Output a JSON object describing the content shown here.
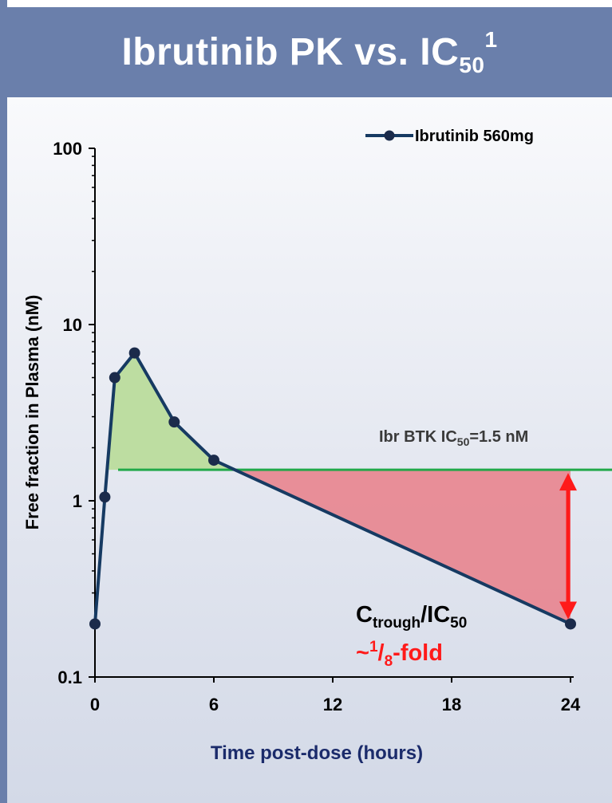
{
  "header": {
    "title_main": "Ibrutinib PK vs. IC",
    "title_sub": "50",
    "title_sup": "1"
  },
  "chart_data": {
    "type": "line",
    "title": "Ibrutinib PK vs. IC50",
    "xlabel": "Time post-dose (hours)",
    "ylabel": "Free fraction in Plasma  (nM)",
    "x_scale": "linear",
    "y_scale": "log",
    "xlim": [
      0,
      24
    ],
    "ylim": [
      0.1,
      100
    ],
    "x_ticks": [
      0,
      6,
      12,
      18,
      24
    ],
    "x_tick_labels": [
      "0",
      "6",
      "12",
      "18",
      "24"
    ],
    "y_ticks": [
      0.1,
      1,
      10,
      100
    ],
    "y_tick_labels": [
      "0.1",
      "1",
      "10",
      "100"
    ],
    "legend": "top-right",
    "series": [
      {
        "name": "Ibrutinib 560mg",
        "color": "#163a62",
        "x": [
          0,
          0.5,
          1,
          2,
          4,
          6,
          24
        ],
        "y": [
          0.2,
          1.05,
          5.0,
          6.9,
          2.8,
          1.7,
          0.2
        ]
      }
    ],
    "reference_line": {
      "label_main": "Ibr BTK IC",
      "label_sub": "50",
      "label_tail": "=1.5 nM",
      "value": 1.5,
      "color": "#22a84a"
    },
    "shaded_regions": [
      {
        "meaning": "above IC50",
        "color": "#b8dc98"
      },
      {
        "meaning": "below IC50",
        "color": "#e8848e"
      }
    ],
    "annotation": {
      "ratio_c": "C",
      "ratio_trough": "trough",
      "ratio_mid": "/IC",
      "ratio_sub": "50",
      "fold_prefix": "~",
      "fold_num": "1",
      "fold_slash": "/",
      "fold_den": "8",
      "fold_suffix": "-fold",
      "arrow_color": "#ff1a1a"
    }
  }
}
